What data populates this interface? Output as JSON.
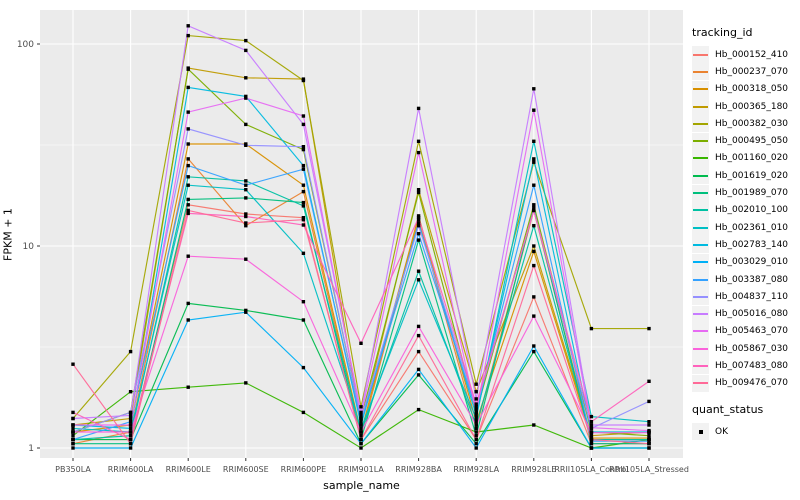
{
  "ui": {
    "y_axis_title": "FPKM + 1",
    "x_axis_title": "sample_name",
    "legend_title_tracking": "tracking_id",
    "legend_title_quant": "quant_status",
    "quant_item_label": "OK"
  },
  "colors": {
    "panel_background": "#EBEBEB",
    "grid": "#FFFFFF",
    "tick_text": "#4D4D4D",
    "tick_mark": "#333333",
    "point": "#000000",
    "legend_key_background": "#F2F2F2"
  },
  "chart_data": {
    "type": "line",
    "title": "",
    "xlabel": "sample_name",
    "ylabel": "FPKM + 1",
    "yscale": "log10",
    "ylim": [
      1,
      130
    ],
    "y_major_ticks": [
      1,
      10,
      100
    ],
    "y_major_tick_labels": [
      "1",
      "10",
      "100"
    ],
    "y_minor_ticks": [
      3.1623,
      31.623
    ],
    "grid": true,
    "legend_position": "right",
    "legend_titles": [
      "tracking_id",
      "quant_status"
    ],
    "quant_status_legend": {
      "label": "OK",
      "marker": "black-square"
    },
    "categories": [
      "PB350LA",
      "RRIM600LA",
      "RRIM600LE",
      "RRIM600SE",
      "RRIM600PE",
      "RRIM901LA",
      "RRIM928BA",
      "RRIM928LA",
      "RRIM928LE",
      "RRII105LA_Control",
      "RRII105LA_Stressed"
    ],
    "series": [
      {
        "name": "Hb_000152_410",
        "color": "#F8766D",
        "values": [
          1.1,
          1.1,
          16,
          14.4,
          13.8,
          1.1,
          3.0,
          1.1,
          5.6,
          1.05,
          1.05
        ]
      },
      {
        "name": "Hb_000237_070",
        "color": "#EA8331",
        "values": [
          1.05,
          1.2,
          27,
          12.6,
          18.6,
          1.15,
          13.5,
          1.25,
          15,
          1.1,
          1.1
        ]
      },
      {
        "name": "Hb_000318_050",
        "color": "#D89000",
        "values": [
          1.2,
          1.3,
          32,
          32,
          20,
          1.2,
          14.1,
          1.35,
          9.4,
          1.12,
          1.12
        ]
      },
      {
        "name": "Hb_000365_180",
        "color": "#C09B00",
        "values": [
          1.3,
          1.4,
          76,
          68,
          67,
          1.3,
          19,
          1.9,
          10,
          1.15,
          1.2
        ]
      },
      {
        "name": "Hb_000382_030",
        "color": "#A3A500",
        "values": [
          1.4,
          3.0,
          110,
          104,
          66,
          1.6,
          33,
          2.07,
          26,
          3.9,
          3.9
        ]
      },
      {
        "name": "Hb_000495_050",
        "color": "#7CAE00",
        "values": [
          1.2,
          1.5,
          75,
          40,
          30,
          1.4,
          18.4,
          1.5,
          16,
          1.2,
          1.15
        ]
      },
      {
        "name": "Hb_001160_020",
        "color": "#39B600",
        "values": [
          1.15,
          1.9,
          2.0,
          2.1,
          1.5,
          1.0,
          1.55,
          1.2,
          1.3,
          1.0,
          1.1
        ]
      },
      {
        "name": "Hb_001619_020",
        "color": "#00BB4E",
        "values": [
          1.1,
          1.1,
          5.2,
          4.8,
          4.3,
          1.05,
          2.3,
          1.05,
          3.0,
          1.0,
          1.0
        ]
      },
      {
        "name": "Hb_001989_070",
        "color": "#00BF7D",
        "values": [
          1.05,
          1.05,
          17,
          17.3,
          16.4,
          1.1,
          10.7,
          1.15,
          15.5,
          1.05,
          1.05
        ]
      },
      {
        "name": "Hb_002010_100",
        "color": "#00C1A3",
        "values": [
          1.1,
          1.15,
          22,
          21,
          15.8,
          1.2,
          7.5,
          1.3,
          12.6,
          1.1,
          1.1
        ]
      },
      {
        "name": "Hb_002361_010",
        "color": "#00BFC4",
        "values": [
          1.25,
          1.2,
          20,
          19,
          9.2,
          1.25,
          6.8,
          1.4,
          33,
          1.43,
          1.35
        ]
      },
      {
        "name": "Hb_002783_140",
        "color": "#00BAE0",
        "values": [
          1.3,
          1.25,
          61,
          55,
          25,
          1.3,
          13,
          1.45,
          27,
          1.2,
          1.2
        ]
      },
      {
        "name": "Hb_003029_010",
        "color": "#00B0F6",
        "values": [
          1.0,
          1.0,
          4.3,
          4.7,
          2.5,
          1.05,
          2.45,
          1.0,
          3.2,
          1.0,
          1.0
        ]
      },
      {
        "name": "Hb_003387_080",
        "color": "#35A2FF",
        "values": [
          1.1,
          1.35,
          25,
          20,
          24,
          1.35,
          11.5,
          1.55,
          20,
          1.08,
          1.08
        ]
      },
      {
        "name": "Hb_004837_110",
        "color": "#9590FF",
        "values": [
          1.2,
          1.5,
          38,
          31.5,
          31,
          1.4,
          12.6,
          1.6,
          15,
          1.25,
          1.7
        ]
      },
      {
        "name": "Hb_005016_080",
        "color": "#C77CFF",
        "values": [
          1.4,
          1.45,
          123,
          93,
          40,
          1.5,
          48,
          1.75,
          60,
          1.3,
          1.3
        ]
      },
      {
        "name": "Hb_005463_070",
        "color": "#E76BF3",
        "values": [
          1.3,
          1.3,
          46,
          54,
          44,
          1.45,
          29,
          1.5,
          47,
          1.26,
          1.22
        ]
      },
      {
        "name": "Hb_005867_030",
        "color": "#FA62DB",
        "values": [
          1.2,
          1.2,
          8.9,
          8.6,
          5.3,
          1.2,
          4.0,
          1.3,
          4.5,
          1.19,
          1.19
        ]
      },
      {
        "name": "Hb_007483_080",
        "color": "#FF62BC",
        "values": [
          1.5,
          1.1,
          14.5,
          14,
          12.7,
          3.3,
          13.8,
          1.65,
          15,
          1.35,
          2.14
        ]
      },
      {
        "name": "Hb_009476_070",
        "color": "#FF6A98",
        "values": [
          2.6,
          1.05,
          15,
          13,
          13.5,
          1.1,
          3.6,
          1.1,
          8,
          1.1,
          1.05
        ]
      }
    ]
  }
}
